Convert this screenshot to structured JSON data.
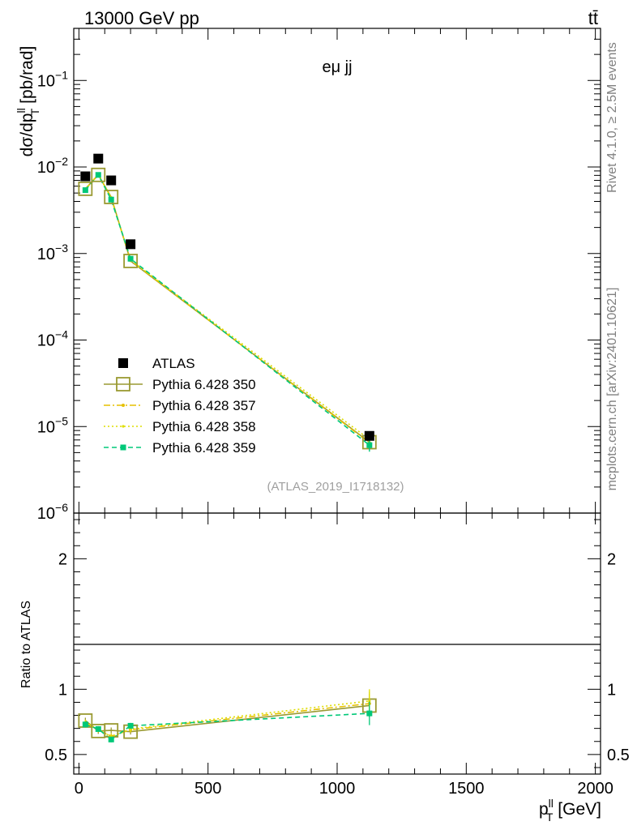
{
  "header": {
    "left_label": "13000 GeV pp",
    "right_label": "tt̄"
  },
  "side_text": {
    "rivet": "Rivet 4.1.0, ≥ 2.5M events",
    "mcplots": "mcplots.cern.ch [arXiv:2401.10621]"
  },
  "chart_data": [
    {
      "type": "scatter",
      "panel": "main",
      "annotation": "eμ jj",
      "watermark": "(ATLAS_2019_I1718132)",
      "ylabel": "dσ/dp_T^ll [pb/rad]",
      "yscale": "log",
      "ylim": [
        1e-06,
        0.4
      ],
      "xlim": [
        -20,
        2020
      ],
      "yticks": [
        {
          "value": 0.1,
          "base": "10",
          "exp": "−1"
        },
        {
          "value": 0.01,
          "base": "10",
          "exp": "−2"
        },
        {
          "value": 0.001,
          "base": "10",
          "exp": "−3"
        },
        {
          "value": 0.0001,
          "base": "10",
          "exp": "−4"
        },
        {
          "value": 1e-05,
          "base": "10",
          "exp": "−5"
        },
        {
          "value": 1e-06,
          "base": "10",
          "exp": "−6"
        }
      ],
      "x": [
        25,
        75,
        125,
        200,
        1125
      ],
      "series": [
        {
          "name": "ATLAS",
          "style": "data",
          "color": "#000000",
          "values": [
            0.0078,
            0.0125,
            0.007,
            0.00128,
            7.8e-06
          ]
        },
        {
          "name": "Pythia 6.428 350",
          "style": "solid-openbox",
          "color": "#9a9a32",
          "values": [
            0.0056,
            0.0081,
            0.0045,
            0.00082,
            6.6e-06
          ]
        },
        {
          "name": "Pythia 6.428 357",
          "style": "dashdot",
          "color": "#e5c000",
          "values": [
            0.0055,
            0.0082,
            0.0044,
            0.00083,
            6.5e-06
          ]
        },
        {
          "name": "Pythia 6.428 358",
          "style": "dotted",
          "color": "#dede00",
          "values": [
            0.0055,
            0.0083,
            0.0044,
            0.00084,
            7.1e-06
          ]
        },
        {
          "name": "Pythia 6.428 359",
          "style": "dashed-square",
          "color": "#00c878",
          "values": [
            0.0054,
            0.0081,
            0.0042,
            0.00087,
            6.1e-06
          ]
        }
      ]
    },
    {
      "type": "line",
      "panel": "ratio",
      "ylabel": "Ratio to ATLAS",
      "xlabel": "p_T^ll [GeV]",
      "ylim": [
        0.35,
        2.35
      ],
      "xlim": [
        -20,
        2020
      ],
      "yticks": [
        0.5,
        1,
        2
      ],
      "ytick_labels": [
        "0.5",
        "1",
        "2"
      ],
      "xticks": [
        0,
        500,
        1000,
        1500,
        2000
      ],
      "xtick_labels": [
        "0",
        "500",
        "1000",
        "1500",
        "2000"
      ],
      "x": [
        25,
        75,
        125,
        200,
        1125
      ],
      "series": [
        {
          "name": "Pythia 6.428 350",
          "values": [
            0.76,
            0.68,
            0.685,
            0.675,
            0.875
          ]
        },
        {
          "name": "Pythia 6.428 357",
          "values": [
            0.74,
            0.69,
            0.64,
            0.69,
            0.89
          ]
        },
        {
          "name": "Pythia 6.428 358",
          "values": [
            0.745,
            0.695,
            0.635,
            0.695,
            0.91
          ]
        },
        {
          "name": "Pythia 6.428 359",
          "values": [
            0.73,
            0.695,
            0.615,
            0.72,
            0.815
          ]
        }
      ]
    }
  ]
}
